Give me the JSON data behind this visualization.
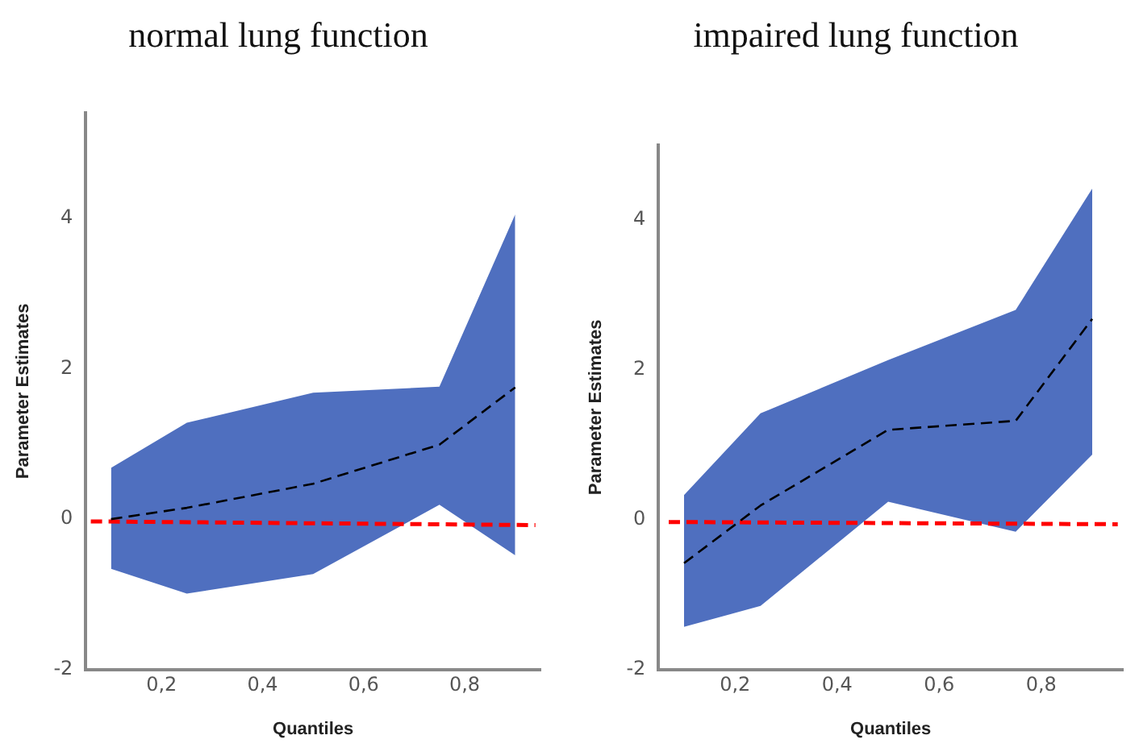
{
  "chart_data": [
    {
      "type": "line",
      "title": "normal lung function",
      "xlabel": "Quantiles",
      "ylabel": "Parameter Estimates",
      "xlim": [
        0.05,
        0.95
      ],
      "xticks": [
        {
          "value": 0.2,
          "label": "0,2"
        },
        {
          "value": 0.4,
          "label": "0,4"
        },
        {
          "value": 0.6,
          "label": "0,6"
        },
        {
          "value": 0.8,
          "label": "0,8"
        }
      ],
      "ylim": [
        -2,
        5.4
      ],
      "yticks": [
        -2,
        0,
        2,
        4
      ],
      "grid": false,
      "legend": false,
      "marker": "none",
      "series": [
        {
          "type": "line",
          "color": "#000000",
          "line_style": "dashed",
          "x": [
            0.1,
            0.25,
            0.5,
            0.75,
            0.9
          ],
          "values": [
            0,
            0.15,
            0.47,
            0.99,
            1.75
          ],
          "lower": [
            -0.66,
            -0.99,
            -0.73,
            0.19,
            -0.48
          ],
          "upper": [
            0.68,
            1.28,
            1.68,
            1.76,
            4.05
          ]
        },
        {
          "type": "line",
          "color": "#ff0000",
          "line_style": "dashed",
          "x": [
            0.06,
            0.94
          ],
          "values": [
            -0.03,
            -0.08
          ]
        }
      ]
    },
    {
      "type": "line",
      "title": "impaired lung function",
      "xlabel": "Quantiles",
      "ylabel": "Parameter Estimates",
      "xlim": [
        0.05,
        0.96
      ],
      "xticks": [
        {
          "value": 0.2,
          "label": "0,2"
        },
        {
          "value": 0.4,
          "label": "0,4"
        },
        {
          "value": 0.6,
          "label": "0,6"
        },
        {
          "value": 0.8,
          "label": "0,8"
        }
      ],
      "ylim": [
        -2,
        5
      ],
      "yticks": [
        -2,
        0,
        2,
        4
      ],
      "grid": false,
      "legend": false,
      "marker": "none",
      "series": [
        {
          "type": "line",
          "color": "#000000",
          "line_style": "dashed",
          "x": [
            0.1,
            0.25,
            0.5,
            0.75,
            0.9
          ],
          "values": [
            -0.58,
            0.19,
            1.2,
            1.32,
            2.68
          ],
          "lower": [
            -1.43,
            -1.15,
            0.24,
            -0.16,
            0.87
          ],
          "upper": [
            0.33,
            1.42,
            2.13,
            2.8,
            4.42
          ]
        },
        {
          "type": "line",
          "color": "#ff0000",
          "line_style": "dashed",
          "x": [
            0.07,
            0.95
          ],
          "values": [
            -0.03,
            -0.06
          ]
        }
      ]
    }
  ]
}
